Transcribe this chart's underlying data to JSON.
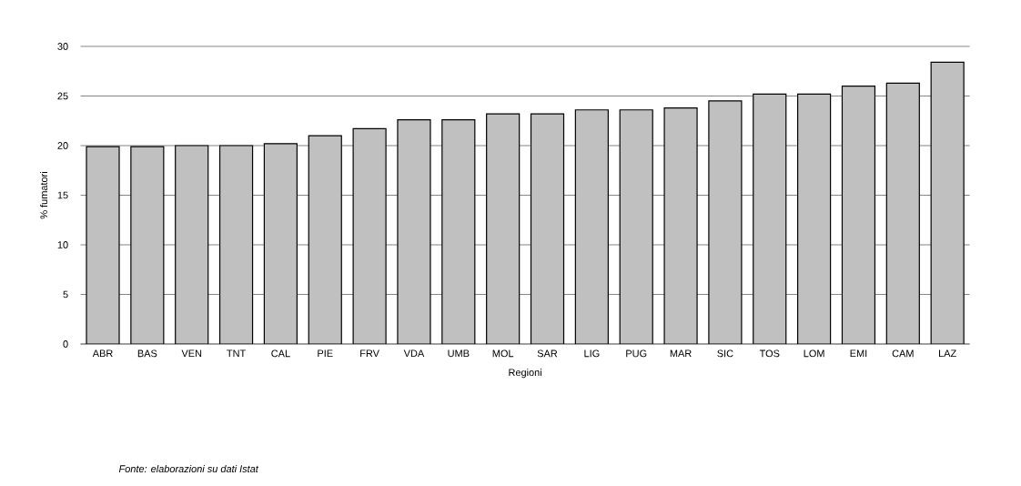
{
  "chart_data": {
    "type": "bar",
    "xlabel": "Regioni",
    "ylabel": "% fumatori",
    "categories": [
      "ABR",
      "BAS",
      "VEN",
      "TNT",
      "CAL",
      "PIE",
      "FRV",
      "VDA",
      "UMB",
      "MOL",
      "SAR",
      "LIG",
      "PUG",
      "MAR",
      "SIC",
      "TOS",
      "LOM",
      "EMI",
      "CAM",
      "LAZ"
    ],
    "values": [
      19.9,
      19.9,
      20.0,
      20.0,
      20.2,
      21.0,
      21.7,
      22.6,
      22.6,
      23.2,
      23.2,
      23.6,
      23.6,
      23.8,
      24.5,
      25.2,
      25.2,
      26.0,
      26.3,
      28.4
    ],
    "color": "#c0c0c0",
    "ylim": [
      0,
      30
    ],
    "yticks": [
      0,
      5,
      10,
      15,
      20,
      25,
      30
    ],
    "grid": "y",
    "annotations": [
      "Fonte: elaborazioni su dati Istat"
    ]
  }
}
